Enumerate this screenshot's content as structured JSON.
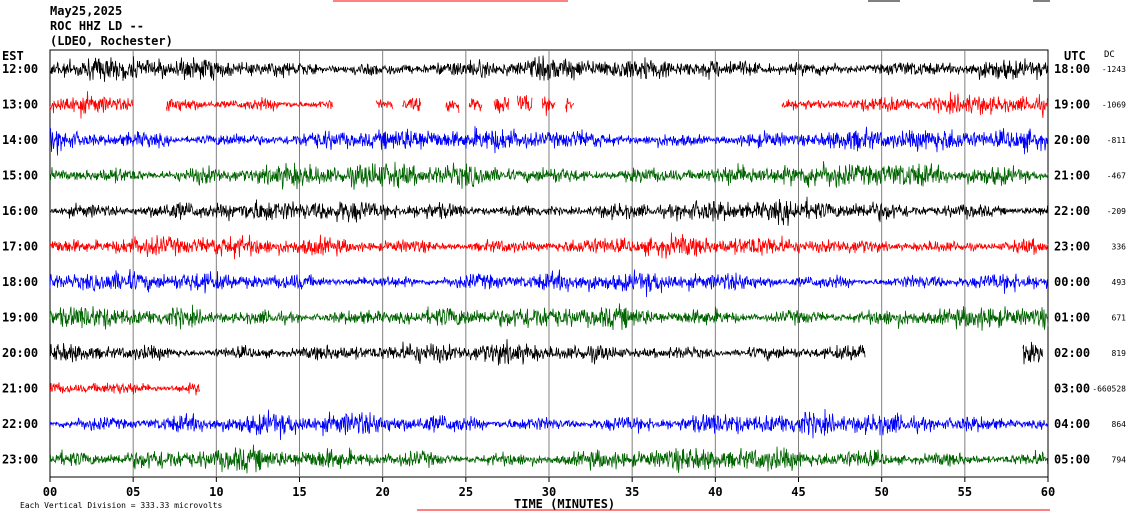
{
  "header": {
    "date": "May25,2025",
    "station": "ROC HHZ LD --",
    "network": "(LDEO, Rochester)"
  },
  "left_zone": "EST",
  "right_zone": "UTC",
  "dc_label": "DC",
  "footer": {
    "scale_note": "Each Vertical Division = 333.33 microvolts",
    "xlabel": "TIME (MINUTES)"
  },
  "chart_data": {
    "type": "line",
    "title": "",
    "xlabel": "TIME (MINUTES)",
    "ylabel": "",
    "xlim": [
      0,
      60
    ],
    "x_ticks": [
      "00",
      "05",
      "10",
      "15",
      "20",
      "25",
      "30",
      "35",
      "40",
      "45",
      "50",
      "55",
      "60"
    ],
    "series_colors": [
      "#000000",
      "#ff0000",
      "#0000ff",
      "#006400"
    ],
    "rows": [
      {
        "local": "12:00",
        "utc": "18:00",
        "dc": "-1243",
        "color": "#000000",
        "amp": 1.0
      },
      {
        "local": "13:00",
        "utc": "19:00",
        "dc": "-1069",
        "color": "#ff0000",
        "amp": 0.85,
        "segments": [
          [
            0,
            5
          ],
          [
            7,
            17
          ],
          [
            19.6,
            20.6
          ],
          [
            21.2,
            22.3
          ],
          [
            23.8,
            24.6
          ],
          [
            25.2,
            26.0
          ],
          [
            26.7,
            27.6
          ],
          [
            28.1,
            29.0
          ],
          [
            29.6,
            30.4
          ],
          [
            31.0,
            31.5
          ],
          [
            44.0,
            60
          ]
        ]
      },
      {
        "local": "14:00",
        "utc": "20:00",
        "dc": "-811",
        "color": "#0000ff",
        "amp": 1.0
      },
      {
        "local": "15:00",
        "utc": "21:00",
        "dc": "-467",
        "color": "#006400",
        "amp": 1.1
      },
      {
        "local": "16:00",
        "utc": "22:00",
        "dc": "-209",
        "color": "#000000",
        "amp": 0.95
      },
      {
        "local": "17:00",
        "utc": "23:00",
        "dc": "336",
        "color": "#ff0000",
        "amp": 0.9
      },
      {
        "local": "18:00",
        "utc": "00:00",
        "dc": "493",
        "color": "#0000ff",
        "amp": 0.9
      },
      {
        "local": "19:00",
        "utc": "01:00",
        "dc": "671",
        "color": "#006400",
        "amp": 1.0
      },
      {
        "local": "20:00",
        "utc": "02:00",
        "dc": "819",
        "color": "#000000",
        "amp": 0.9,
        "segments": [
          [
            0,
            49
          ],
          [
            58.5,
            59.7
          ]
        ]
      },
      {
        "local": "21:00",
        "utc": "03:00",
        "dc": "-660528",
        "color": "#ff0000",
        "amp": 0.9,
        "segments": [
          [
            0,
            9
          ]
        ]
      },
      {
        "local": "22:00",
        "utc": "04:00",
        "dc": "864",
        "color": "#0000ff",
        "amp": 1.0
      },
      {
        "local": "23:00",
        "utc": "05:00",
        "dc": "794",
        "color": "#006400",
        "amp": 1.0
      }
    ]
  }
}
